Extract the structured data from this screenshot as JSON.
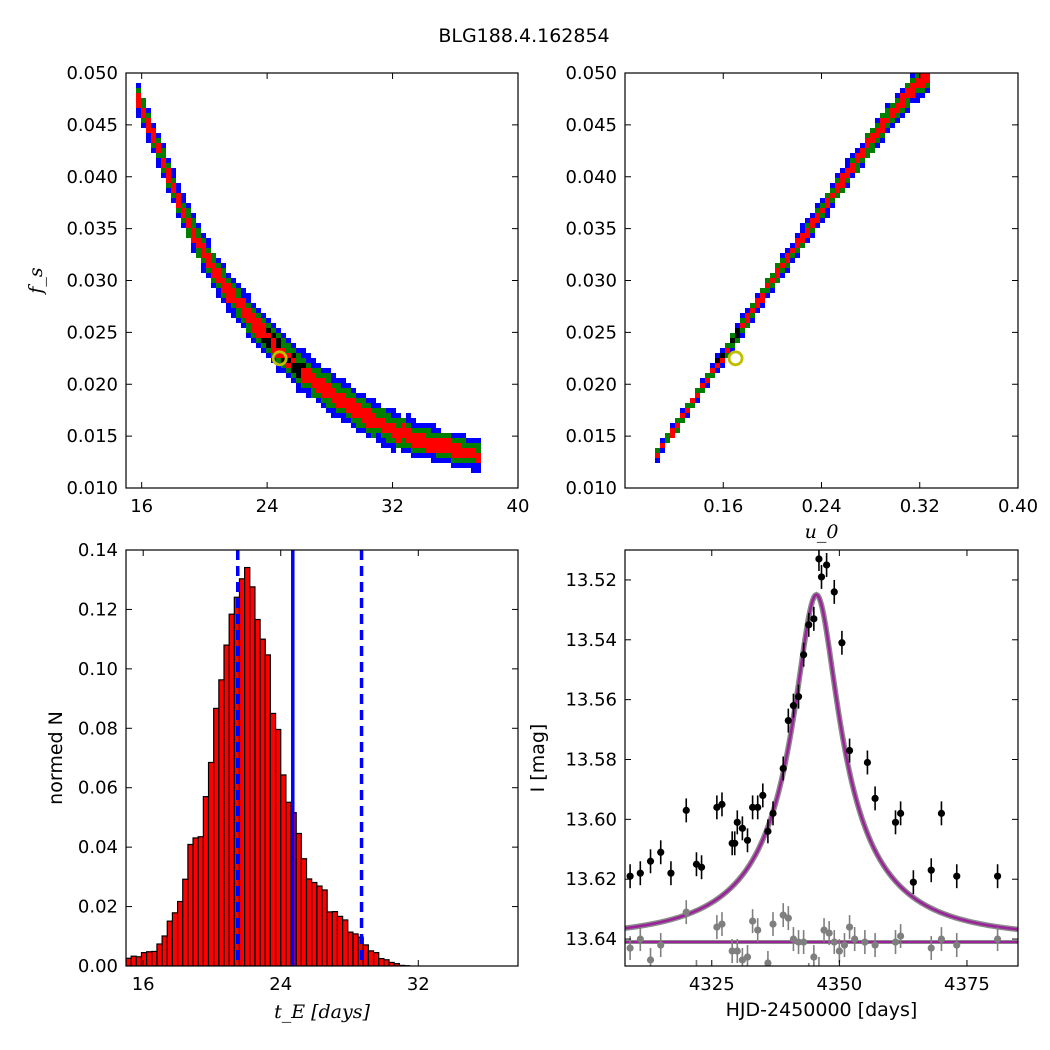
{
  "figure": {
    "title": "BLG188.4.162854"
  },
  "colors": {
    "outer_region": "#0000ff",
    "mid_region": "#007f00",
    "inner_region": "#ff0000",
    "core_region": "#000000",
    "best_fit_marker": "#bfbf00",
    "histogram_bar": "#ff0000",
    "bound_line": "#0000ff",
    "model_curve": "#9b229b",
    "data_point": "#000000",
    "residual_point": "#7f7f7f"
  },
  "chart_data": [
    {
      "id": "fs_vs_tE",
      "type": "heatmap",
      "xlabel": "",
      "ylabel": "f_s",
      "xlim": [
        15,
        40
      ],
      "ylim": [
        0.01,
        0.05
      ],
      "xticks": [
        16,
        24,
        32,
        40
      ],
      "yticks": [
        0.01,
        0.015,
        0.02,
        0.025,
        0.03,
        0.035,
        0.04,
        0.045,
        0.05
      ],
      "xtick_labels": [
        "16",
        "24",
        "32",
        "40"
      ],
      "ytick_labels": [
        "0.010",
        "0.015",
        "0.020",
        "0.025",
        "0.030",
        "0.035",
        "0.040",
        "0.045",
        "0.050"
      ],
      "levels": [
        "core",
        "1-sigma",
        "2-sigma",
        "3-sigma"
      ],
      "ridge_x": [
        15.5,
        17.0,
        18.5,
        20.0,
        21.5,
        23.0,
        24.5,
        26.0,
        28.0,
        30.0,
        32.0,
        34.0,
        36.0,
        37.5
      ],
      "ridge_y": [
        0.0485,
        0.043,
        0.037,
        0.0325,
        0.029,
        0.0262,
        0.0238,
        0.0215,
        0.0192,
        0.0172,
        0.0156,
        0.0145,
        0.0137,
        0.013
      ],
      "best_fit": {
        "x": 24.8,
        "y": 0.0225
      }
    },
    {
      "id": "fs_vs_u0",
      "type": "heatmap",
      "xlabel": "u_0",
      "ylabel": "",
      "xlim": [
        0.08,
        0.4
      ],
      "ylim": [
        0.01,
        0.05
      ],
      "xticks": [
        0.16,
        0.24,
        0.32,
        0.4
      ],
      "yticks": [
        0.01,
        0.015,
        0.02,
        0.025,
        0.03,
        0.035,
        0.04,
        0.045,
        0.05
      ],
      "xtick_labels": [
        "0.16",
        "0.24",
        "0.32",
        "0.40"
      ],
      "ytick_labels": [
        "0.010",
        "0.015",
        "0.020",
        "0.025",
        "0.030",
        "0.035",
        "0.040",
        "0.045",
        "0.050"
      ],
      "ridge_x": [
        0.105,
        0.125,
        0.15,
        0.175,
        0.2,
        0.23,
        0.26,
        0.29,
        0.315,
        0.33
      ],
      "ridge_y": [
        0.013,
        0.0165,
        0.021,
        0.0255,
        0.03,
        0.035,
        0.04,
        0.045,
        0.0485,
        0.05
      ],
      "best_fit": {
        "x": 0.17,
        "y": 0.0225
      }
    },
    {
      "id": "tE_histogram",
      "type": "bar",
      "xlabel": "t_E [days]",
      "ylabel": "normed N",
      "xlim": [
        15,
        37.8
      ],
      "ylim": [
        0.0,
        0.14
      ],
      "xticks": [
        16,
        24,
        32
      ],
      "yticks": [
        0.0,
        0.02,
        0.04,
        0.06,
        0.08,
        0.1,
        0.12,
        0.14
      ],
      "xtick_labels": [
        "16",
        "24",
        "32"
      ],
      "ytick_labels": [
        "0.00",
        "0.02",
        "0.04",
        "0.06",
        "0.08",
        "0.10",
        "0.12",
        "0.14"
      ],
      "bin_start": 15.0,
      "bin_width": 0.3,
      "values": [
        0.0026,
        0.0033,
        0.0031,
        0.0045,
        0.0048,
        0.0049,
        0.0074,
        0.0101,
        0.0151,
        0.0179,
        0.0217,
        0.0292,
        0.0409,
        0.0431,
        0.0435,
        0.057,
        0.0685,
        0.0867,
        0.0963,
        0.108,
        0.1184,
        0.1241,
        0.1303,
        0.1341,
        0.1276,
        0.1166,
        0.11,
        0.1047,
        0.085,
        0.0796,
        0.0643,
        0.0551,
        0.0516,
        0.0446,
        0.0361,
        0.0293,
        0.0281,
        0.0269,
        0.0256,
        0.0182,
        0.0183,
        0.0167,
        0.0155,
        0.0114,
        0.0108,
        0.0097,
        0.0071,
        0.0051,
        0.0045,
        0.0025,
        0.0021,
        0.0012,
        0.0008,
        0.0002,
        0.0001
      ],
      "lower_bound": 21.5,
      "median": 24.7,
      "upper_bound": 28.7
    },
    {
      "id": "light_curve",
      "type": "scatter",
      "xlabel": "HJD-2450000 [days]",
      "ylabel": "I [mag]",
      "xlim": [
        4308,
        4385
      ],
      "ylim": [
        13.649,
        13.51
      ],
      "xticks": [
        4325,
        4350,
        4375
      ],
      "yticks": [
        13.52,
        13.54,
        13.56,
        13.58,
        13.6,
        13.62,
        13.64
      ],
      "xtick_labels": [
        "4325",
        "4350",
        "4375"
      ],
      "ytick_labels": [
        "13.52",
        "13.54",
        "13.56",
        "13.58",
        "13.60",
        "13.62",
        "13.64"
      ],
      "model": {
        "t0": 4345.5,
        "tE": 24.8,
        "u0": 0.17,
        "fs": 0.0225,
        "I_base": 13.6395
      },
      "series": [
        {
          "role": "data",
          "x": [
            4309,
            4311,
            4313,
            4315,
            4317,
            4320,
            4322,
            4323,
            4326,
            4327,
            4329,
            4329.5,
            4330,
            4331,
            4332,
            4333,
            4334,
            4335,
            4336,
            4337,
            4339,
            4340,
            4341,
            4342,
            4343,
            4344,
            4345,
            4346,
            4346.5,
            4347.5,
            4349,
            4350.5,
            4352,
            4355.5,
            4357,
            4361,
            4362,
            4364.5,
            4368,
            4370,
            4373,
            4381
          ],
          "y": [
            13.619,
            13.618,
            13.614,
            13.611,
            13.618,
            13.597,
            13.615,
            13.616,
            13.596,
            13.595,
            13.608,
            13.608,
            13.601,
            13.603,
            13.607,
            13.596,
            13.596,
            13.592,
            13.604,
            13.598,
            13.583,
            13.567,
            13.562,
            13.559,
            13.545,
            13.535,
            13.533,
            13.513,
            13.519,
            13.515,
            13.524,
            13.541,
            13.577,
            13.581,
            13.593,
            13.601,
            13.598,
            13.621,
            13.617,
            13.598,
            13.619,
            13.619
          ],
          "yerr": [
            0.004,
            0.004,
            0.004,
            0.004,
            0.004,
            0.004,
            0.004,
            0.004,
            0.004,
            0.004,
            0.004,
            0.004,
            0.004,
            0.004,
            0.004,
            0.004,
            0.004,
            0.004,
            0.004,
            0.004,
            0.004,
            0.004,
            0.004,
            0.004,
            0.004,
            0.004,
            0.004,
            0.004,
            0.004,
            0.004,
            0.004,
            0.004,
            0.004,
            0.004,
            0.004,
            0.004,
            0.004,
            0.004,
            0.004,
            0.004,
            0.004,
            0.004
          ]
        },
        {
          "role": "residuals",
          "x": [
            4309,
            4311,
            4313,
            4315,
            4320,
            4322,
            4326,
            4327,
            4329,
            4330,
            4331,
            4332,
            4333,
            4334,
            4336,
            4337,
            4339,
            4340,
            4341,
            4342,
            4343,
            4344,
            4345,
            4346,
            4347,
            4348,
            4349,
            4350,
            4351,
            4352,
            4353,
            4355,
            4357,
            4361,
            4362,
            4364,
            4368,
            4370,
            4373,
            4381
          ],
          "y": [
            13.643,
            13.64,
            13.647,
            13.642,
            13.631,
            13.651,
            13.636,
            13.635,
            13.644,
            13.644,
            13.647,
            13.646,
            13.634,
            13.637,
            13.648,
            13.635,
            13.632,
            13.633,
            13.64,
            13.641,
            13.641,
            13.652,
            13.646,
            13.65,
            13.637,
            13.638,
            13.641,
            13.644,
            13.642,
            13.636,
            13.64,
            13.641,
            13.642,
            13.641,
            13.639,
            13.654,
            13.643,
            13.64,
            13.642,
            13.64
          ],
          "yerr": [
            0.004,
            0.004,
            0.004,
            0.004,
            0.004,
            0.004,
            0.004,
            0.004,
            0.004,
            0.004,
            0.004,
            0.004,
            0.004,
            0.004,
            0.004,
            0.004,
            0.004,
            0.004,
            0.004,
            0.004,
            0.004,
            0.004,
            0.004,
            0.004,
            0.004,
            0.004,
            0.004,
            0.004,
            0.004,
            0.004,
            0.004,
            0.004,
            0.004,
            0.004,
            0.004,
            0.004,
            0.004,
            0.004,
            0.004,
            0.004
          ]
        }
      ],
      "baseline": 13.641
    }
  ]
}
